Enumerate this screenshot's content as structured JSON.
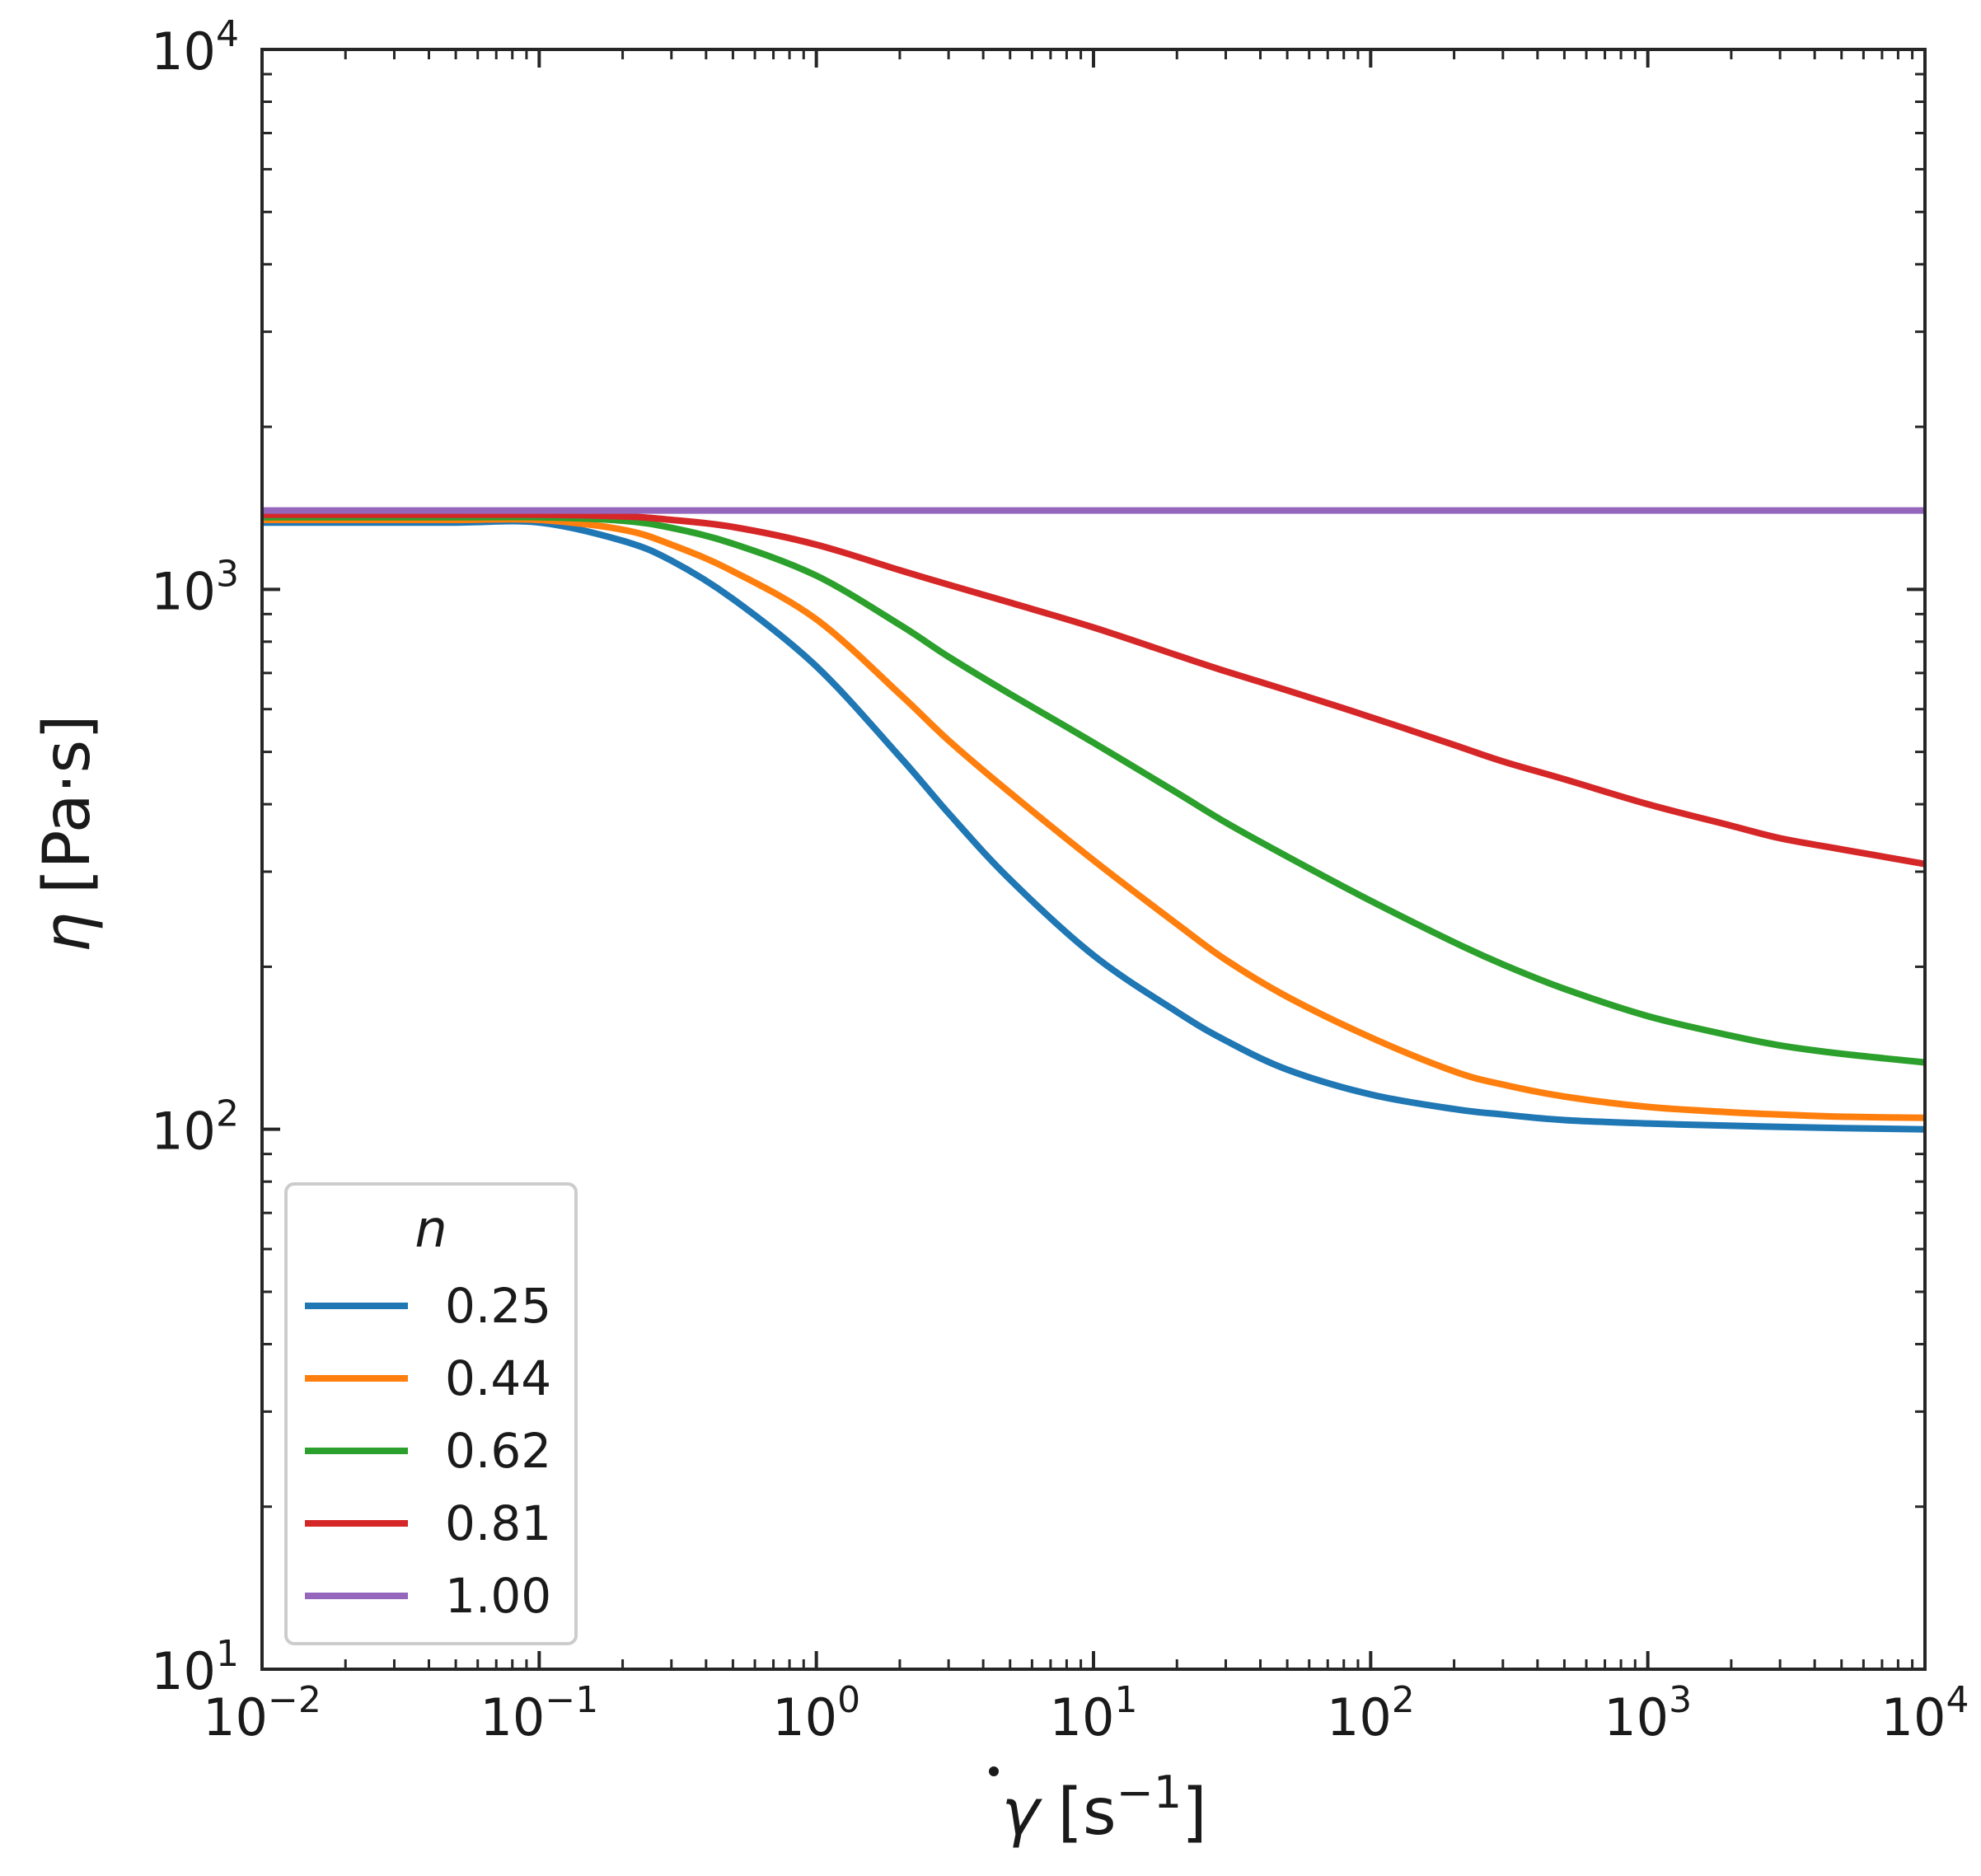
{
  "chart_data": {
    "type": "line",
    "title": "",
    "xlabel_symbol": "γ",
    "xlabel_unit_open": "[s",
    "xlabel_unit_exp": "−1",
    "xlabel_unit_close": "]",
    "ylabel_symbol": "η",
    "ylabel_unit": "[Pa·s]",
    "xscale": "log",
    "yscale": "log",
    "xlim": [
      0.01,
      10000
    ],
    "ylim": [
      10,
      10000
    ],
    "x_ticks": [
      {
        "base": "10",
        "exp": "−2"
      },
      {
        "base": "10",
        "exp": "−1"
      },
      {
        "base": "10",
        "exp": "0"
      },
      {
        "base": "10",
        "exp": "1"
      },
      {
        "base": "10",
        "exp": "2"
      },
      {
        "base": "10",
        "exp": "3"
      },
      {
        "base": "10",
        "exp": "4"
      }
    ],
    "y_ticks": [
      {
        "base": "10",
        "exp": "1"
      },
      {
        "base": "10",
        "exp": "2"
      },
      {
        "base": "10",
        "exp": "3"
      },
      {
        "base": "10",
        "exp": "4"
      }
    ],
    "legend": {
      "title": "n",
      "placement": "lower-left"
    },
    "x": [
      0.01,
      0.02,
      0.05,
      0.1,
      0.2,
      0.3,
      0.5,
      1,
      2,
      3,
      5,
      10,
      20,
      30,
      50,
      100,
      200,
      300,
      500,
      1000,
      2000,
      3000,
      5000,
      10000
    ],
    "series": [
      {
        "name": "0.25",
        "color": "#1f77b4",
        "values": [
          1330,
          1330,
          1330,
          1330,
          1230,
          1130,
          960,
          720,
          490,
          385,
          290,
          210,
          165,
          146,
          129,
          116,
          109,
          106.5,
          104,
          102.5,
          101.5,
          101,
          100.5,
          100
        ]
      },
      {
        "name": "0.44",
        "color": "#ff7f0e",
        "values": [
          1345,
          1345,
          1345,
          1345,
          1290,
          1210,
          1080,
          880,
          640,
          525,
          420,
          315,
          240,
          206,
          176,
          148,
          128,
          121,
          115,
          110,
          107.5,
          106.5,
          105.5,
          105
        ]
      },
      {
        "name": "0.62",
        "color": "#2ca02c",
        "values": [
          1360,
          1360,
          1360,
          1360,
          1340,
          1300,
          1215,
          1060,
          860,
          750,
          640,
          520,
          420,
          370,
          320,
          265,
          222,
          202,
          182,
          162,
          149,
          143,
          138,
          133
        ]
      },
      {
        "name": "0.81",
        "color": "#d62728",
        "values": [
          1375,
          1375,
          1375,
          1375,
          1365,
          1345,
          1305,
          1210,
          1085,
          1020,
          945,
          850,
          755,
          705,
          650,
          580,
          515,
          480,
          445,
          400,
          365,
          346,
          330,
          310
        ]
      },
      {
        "name": "1.00",
        "color": "#9467bd",
        "values": [
          1400,
          1400,
          1400,
          1400,
          1400,
          1400,
          1400,
          1400,
          1400,
          1400,
          1400,
          1400,
          1400,
          1400,
          1400,
          1400,
          1400,
          1400,
          1400,
          1400,
          1400,
          1400,
          1400,
          1400
        ]
      }
    ]
  }
}
